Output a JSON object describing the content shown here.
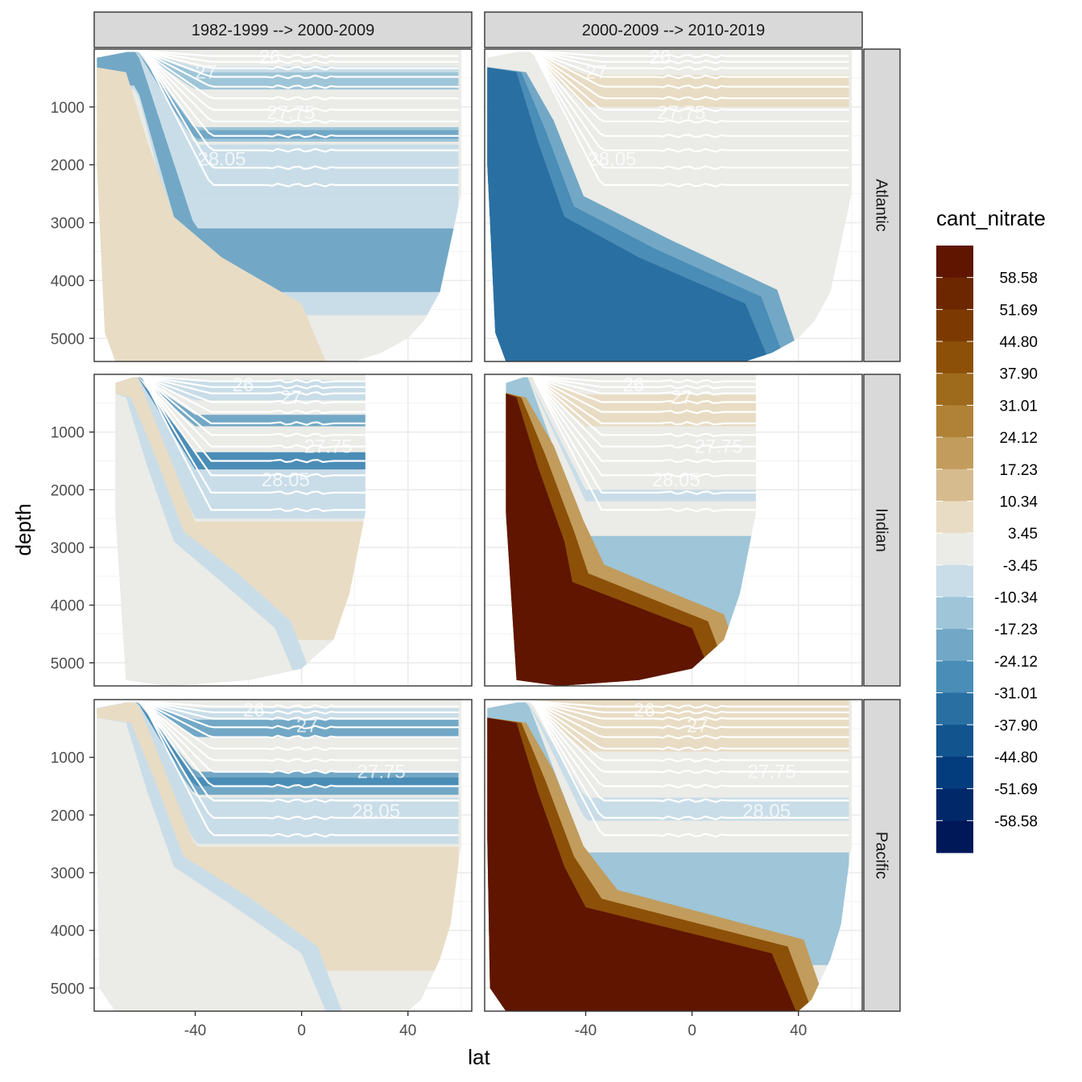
{
  "chart_data": {
    "type": "heatmap",
    "title": "",
    "xlabel": "lat",
    "ylabel": "depth",
    "x_ticks": [
      "-40",
      "0",
      "40"
    ],
    "x_tick_values": [
      -40,
      0,
      40
    ],
    "y_ticks": [
      "1000",
      "2000",
      "3000",
      "4000",
      "5000"
    ],
    "y_tick_values": [
      1000,
      2000,
      3000,
      4000,
      5000
    ],
    "xlim": [
      -78,
      64
    ],
    "ylim": [
      5400,
      0
    ],
    "grid": true,
    "facet_columns": [
      "1982-1999 --> 2000-2009",
      "2000-2009 --> 2010-2019"
    ],
    "facet_rows": [
      "Atlantic",
      "Indian",
      "Pacific"
    ],
    "isopycnal_labels": [
      "26",
      "27",
      "27.75",
      "28.05"
    ],
    "legend": {
      "title": "cant_nitrate",
      "position": "right",
      "breaks": [
        "58.58",
        "51.69",
        "44.80",
        "37.90",
        "31.01",
        "24.12",
        "17.23",
        "10.34",
        "3.45",
        "-3.45",
        "-10.34",
        "-17.23",
        "-24.12",
        "-31.01",
        "-37.90",
        "-44.80",
        "-51.69",
        "-58.58"
      ],
      "colors": [
        "#5f1500",
        "#6c2600",
        "#7c3a02",
        "#8c5008",
        "#9e6a1c",
        "#b08238",
        "#c29c5c",
        "#d6bb8e",
        "#e8dcc4",
        "#ebebe7",
        "#c9dde8",
        "#9ec5d8",
        "#72a8c6",
        "#4a8db6",
        "#2a6fa2",
        "#11548e",
        "#033d7e",
        "#01296a",
        "#001858"
      ]
    }
  }
}
